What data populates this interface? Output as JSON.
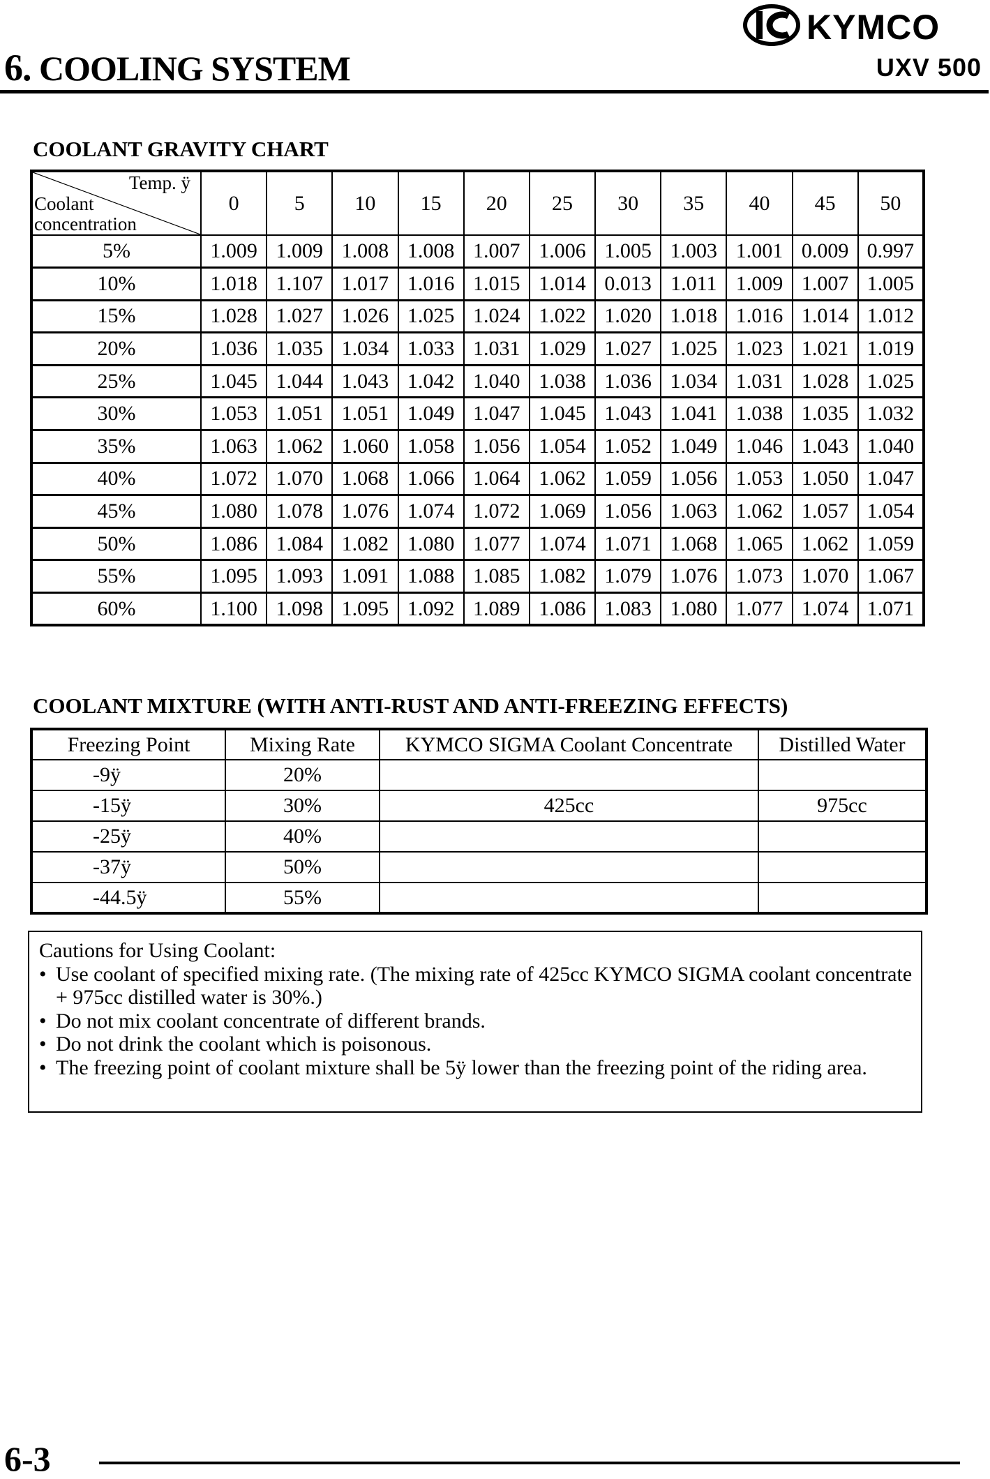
{
  "header": {
    "brand": "KYMCO",
    "chapter_number": "6.",
    "chapter_title": "COOLING SYSTEM",
    "model": "UXV 500"
  },
  "gravity_chart": {
    "title": "COOLANT GRAVITY CHART",
    "corner": {
      "temp_label": "Temp. ÿ",
      "row_label_1": "Coolant",
      "row_label_2": "concentration"
    },
    "temperatures": [
      "0",
      "5",
      "10",
      "15",
      "20",
      "25",
      "30",
      "35",
      "40",
      "45",
      "50"
    ],
    "rows": [
      {
        "concentration": "5%",
        "values": [
          "1.009",
          "1.009",
          "1.008",
          "1.008",
          "1.007",
          "1.006",
          "1.005",
          "1.003",
          "1.001",
          "0.009",
          "0.997"
        ]
      },
      {
        "concentration": "10%",
        "values": [
          "1.018",
          "1.107",
          "1.017",
          "1.016",
          "1.015",
          "1.014",
          "0.013",
          "1.011",
          "1.009",
          "1.007",
          "1.005"
        ]
      },
      {
        "concentration": "15%",
        "values": [
          "1.028",
          "1.027",
          "1.026",
          "1.025",
          "1.024",
          "1.022",
          "1.020",
          "1.018",
          "1.016",
          "1.014",
          "1.012"
        ]
      },
      {
        "concentration": "20%",
        "values": [
          "1.036",
          "1.035",
          "1.034",
          "1.033",
          "1.031",
          "1.029",
          "1.027",
          "1.025",
          "1.023",
          "1.021",
          "1.019"
        ]
      },
      {
        "concentration": "25%",
        "values": [
          "1.045",
          "1.044",
          "1.043",
          "1.042",
          "1.040",
          "1.038",
          "1.036",
          "1.034",
          "1.031",
          "1.028",
          "1.025"
        ]
      },
      {
        "concentration": "30%",
        "values": [
          "1.053",
          "1.051",
          "1.051",
          "1.049",
          "1.047",
          "1.045",
          "1.043",
          "1.041",
          "1.038",
          "1.035",
          "1.032"
        ]
      },
      {
        "concentration": "35%",
        "values": [
          "1.063",
          "1.062",
          "1.060",
          "1.058",
          "1.056",
          "1.054",
          "1.052",
          "1.049",
          "1.046",
          "1.043",
          "1.040"
        ]
      },
      {
        "concentration": "40%",
        "values": [
          "1.072",
          "1.070",
          "1.068",
          "1.066",
          "1.064",
          "1.062",
          "1.059",
          "1.056",
          "1.053",
          "1.050",
          "1.047"
        ]
      },
      {
        "concentration": "45%",
        "values": [
          "1.080",
          "1.078",
          "1.076",
          "1.074",
          "1.072",
          "1.069",
          "1.056",
          "1.063",
          "1.062",
          "1.057",
          "1.054"
        ]
      },
      {
        "concentration": "50%",
        "values": [
          "1.086",
          "1.084",
          "1.082",
          "1.080",
          "1.077",
          "1.074",
          "1.071",
          "1.068",
          "1.065",
          "1.062",
          "1.059"
        ]
      },
      {
        "concentration": "55%",
        "values": [
          "1.095",
          "1.093",
          "1.091",
          "1.088",
          "1.085",
          "1.082",
          "1.079",
          "1.076",
          "1.073",
          "1.070",
          "1.067"
        ]
      },
      {
        "concentration": "60%",
        "values": [
          "1.100",
          "1.098",
          "1.095",
          "1.092",
          "1.089",
          "1.086",
          "1.083",
          "1.080",
          "1.077",
          "1.074",
          "1.071"
        ]
      }
    ]
  },
  "mixture_table": {
    "title": "COOLANT MIXTURE (WITH ANTI-RUST AND ANTI-FREEZING EFFECTS)",
    "columns": [
      "Freezing Point",
      "Mixing Rate",
      "KYMCO SIGMA Coolant Concentrate",
      "Distilled Water"
    ],
    "rows": [
      [
        "-9ÿ",
        "20%",
        "",
        ""
      ],
      [
        "-15ÿ",
        "30%",
        "425cc",
        "975cc"
      ],
      [
        "-25ÿ",
        "40%",
        "",
        ""
      ],
      [
        "-37ÿ",
        "50%",
        "",
        ""
      ],
      [
        "-44.5ÿ",
        "55%",
        "",
        ""
      ]
    ]
  },
  "cautions": {
    "title": "Cautions for Using Coolant:",
    "bullet": "•",
    "items": [
      "Use coolant of specified mixing rate. (The mixing rate of 425cc KYMCO SIGMA coolant concentrate + 975cc distilled water is 30%.)",
      "Do not mix coolant concentrate of different brands.",
      "Do not drink the coolant which is poisonous.",
      "The freezing point of coolant mixture shall be 5ÿ  lower than the freezing point of the riding area."
    ]
  },
  "footer": {
    "page_number": "6-3"
  }
}
